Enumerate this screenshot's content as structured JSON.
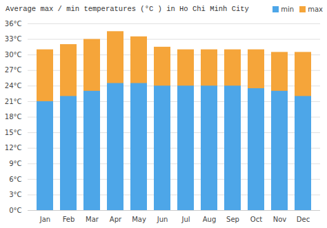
{
  "chart_data": {
    "type": "bar",
    "title": "Average max / min temperatures (°C ) in Ho Chi Minh City",
    "categories": [
      "Jan",
      "Feb",
      "Mar",
      "Apr",
      "May",
      "Jun",
      "Jul",
      "Aug",
      "Sep",
      "Oct",
      "Nov",
      "Dec"
    ],
    "series": [
      {
        "name": "min",
        "color": "#4da6e8",
        "values": [
          21,
          22,
          23,
          24.5,
          24.5,
          24,
          24,
          24,
          24,
          23.5,
          23,
          22
        ]
      },
      {
        "name": "max",
        "color": "#f5a53a",
        "values": [
          31,
          32,
          33,
          34.5,
          33.5,
          31.5,
          31,
          31,
          31,
          31,
          30.5,
          30.5
        ]
      }
    ],
    "stacked": false,
    "ylim": [
      0,
      36
    ],
    "yticks": [
      {
        "value": 0,
        "label": "0°C"
      },
      {
        "value": 3,
        "label": "3°C"
      },
      {
        "value": 6,
        "label": "6°C"
      },
      {
        "value": 9,
        "label": "9°C"
      },
      {
        "value": 12,
        "label": "12°C"
      },
      {
        "value": 15,
        "label": "15°C"
      },
      {
        "value": 18,
        "label": "18°C"
      },
      {
        "value": 21,
        "label": "21°C"
      },
      {
        "value": 24,
        "label": "24°C"
      },
      {
        "value": 27,
        "label": "27°C"
      },
      {
        "value": 30,
        "label": "30°C"
      },
      {
        "value": 33,
        "label": "33°C"
      },
      {
        "value": 36,
        "label": "36°C"
      }
    ],
    "grid": true,
    "legend": "top-right"
  }
}
